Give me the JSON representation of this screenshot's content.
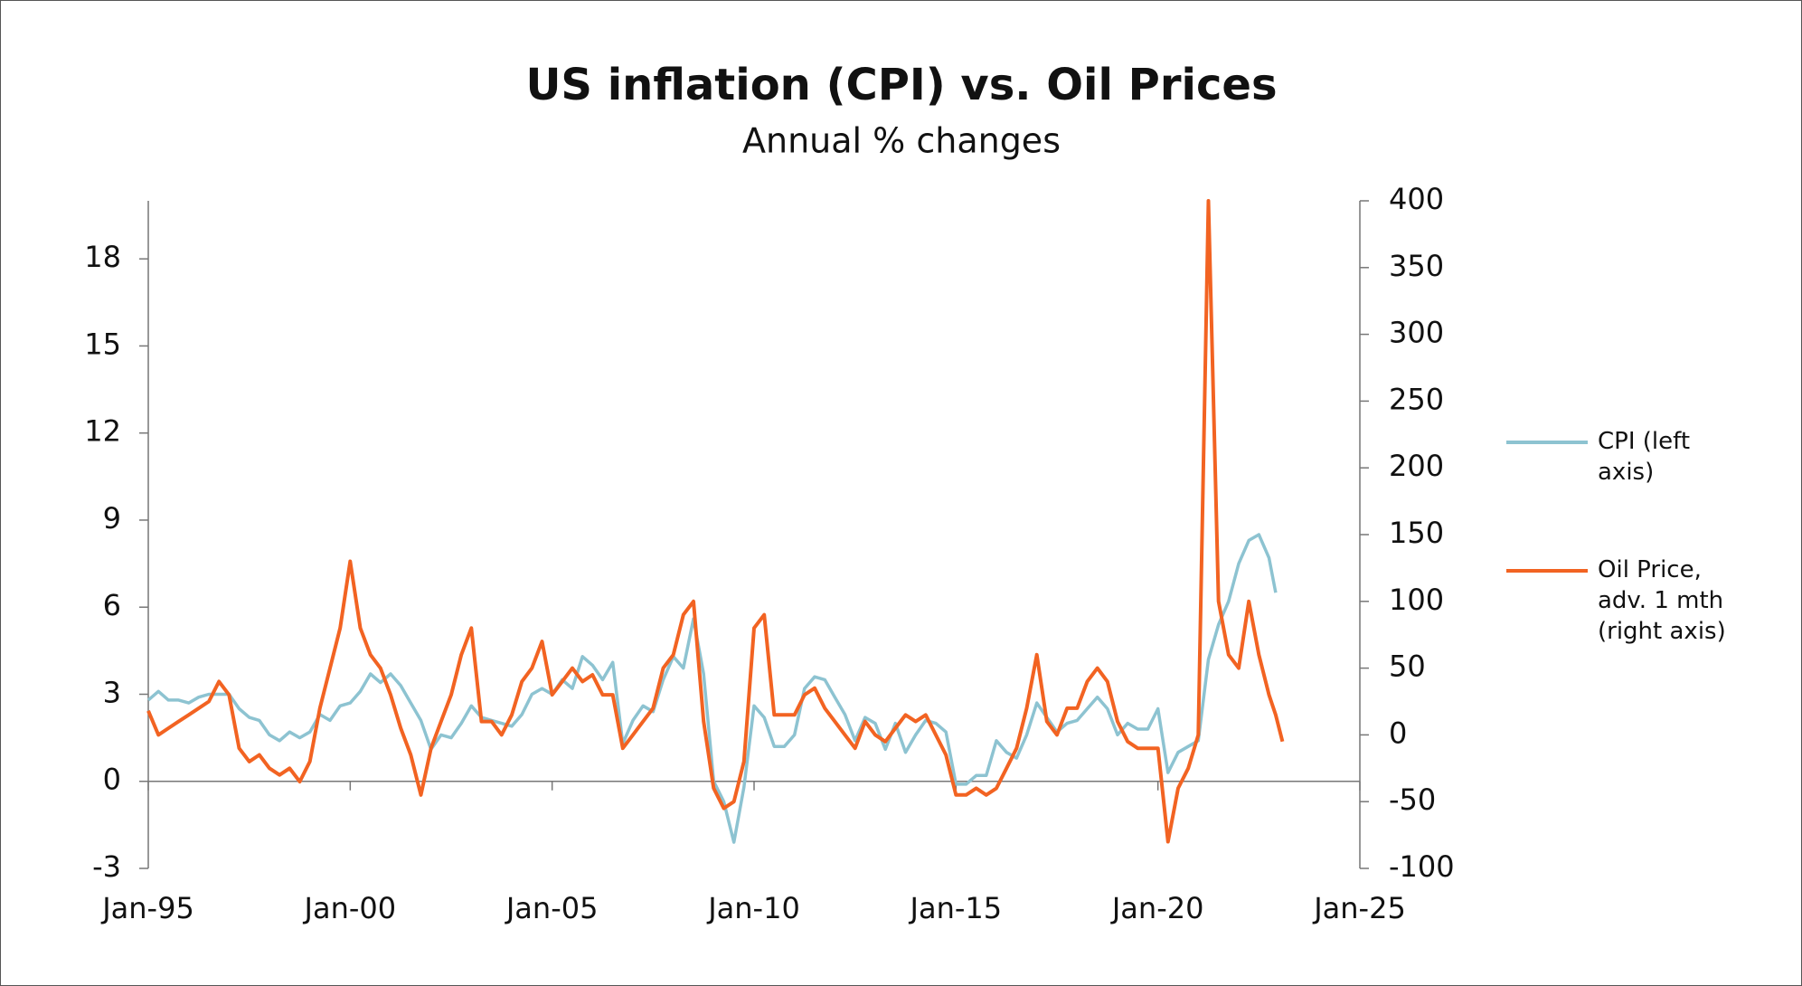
{
  "chart_data": {
    "type": "line",
    "title": "US inflation (CPI) vs. Oil Prices",
    "subtitle": "Annual % changes",
    "x": [
      "Jan-95",
      "Apr-95",
      "Jul-95",
      "Oct-95",
      "Jan-96",
      "Apr-96",
      "Jul-96",
      "Oct-96",
      "Jan-97",
      "Apr-97",
      "Jul-97",
      "Oct-97",
      "Jan-98",
      "Apr-98",
      "Jul-98",
      "Oct-98",
      "Jan-99",
      "Apr-99",
      "Jul-99",
      "Oct-99",
      "Jan-00",
      "Apr-00",
      "Jul-00",
      "Oct-00",
      "Jan-01",
      "Apr-01",
      "Jul-01",
      "Oct-01",
      "Jan-02",
      "Apr-02",
      "Jul-02",
      "Oct-02",
      "Jan-03",
      "Apr-03",
      "Jul-03",
      "Oct-03",
      "Jan-04",
      "Apr-04",
      "Jul-04",
      "Oct-04",
      "Jan-05",
      "Apr-05",
      "Jul-05",
      "Oct-05",
      "Jan-06",
      "Apr-06",
      "Jul-06",
      "Oct-06",
      "Jan-07",
      "Apr-07",
      "Jul-07",
      "Oct-07",
      "Jan-08",
      "Apr-08",
      "Jul-08",
      "Oct-08",
      "Jan-09",
      "Apr-09",
      "Jul-09",
      "Oct-09",
      "Jan-10",
      "Apr-10",
      "Jul-10",
      "Oct-10",
      "Jan-11",
      "Apr-11",
      "Jul-11",
      "Oct-11",
      "Jan-12",
      "Apr-12",
      "Jul-12",
      "Oct-12",
      "Jan-13",
      "Apr-13",
      "Jul-13",
      "Oct-13",
      "Jan-14",
      "Apr-14",
      "Jul-14",
      "Oct-14",
      "Jan-15",
      "Apr-15",
      "Jul-15",
      "Oct-15",
      "Jan-16",
      "Apr-16",
      "Jul-16",
      "Oct-16",
      "Jan-17",
      "Apr-17",
      "Jul-17",
      "Oct-17",
      "Jan-18",
      "Apr-18",
      "Jul-18",
      "Oct-18",
      "Jan-19",
      "Apr-19",
      "Jul-19",
      "Oct-19",
      "Jan-20",
      "Apr-20",
      "Jul-20",
      "Oct-20",
      "Jan-21",
      "Apr-21",
      "Jul-21",
      "Oct-21",
      "Jan-22",
      "Apr-22",
      "Jul-22",
      "Oct-22",
      "Dec-22",
      "Feb-23"
    ],
    "series": [
      {
        "name": "CPI (left axis)",
        "color": "#8dc3d1",
        "axis": "y",
        "values": [
          2.8,
          3.1,
          2.8,
          2.8,
          2.7,
          2.9,
          3.0,
          3.0,
          3.0,
          2.5,
          2.2,
          2.1,
          1.6,
          1.4,
          1.7,
          1.5,
          1.7,
          2.3,
          2.1,
          2.6,
          2.7,
          3.1,
          3.7,
          3.4,
          3.7,
          3.3,
          2.7,
          2.1,
          1.1,
          1.6,
          1.5,
          2.0,
          2.6,
          2.2,
          2.1,
          2.0,
          1.9,
          2.3,
          3.0,
          3.2,
          3.0,
          3.5,
          3.2,
          4.3,
          4.0,
          3.5,
          4.1,
          1.3,
          2.1,
          2.6,
          2.4,
          3.5,
          4.3,
          3.9,
          5.6,
          3.7,
          0.0,
          -0.7,
          -2.1,
          -0.2,
          2.6,
          2.2,
          1.2,
          1.2,
          1.6,
          3.2,
          3.6,
          3.5,
          2.9,
          2.3,
          1.4,
          2.2,
          2.0,
          1.1,
          2.0,
          1.0,
          1.6,
          2.1,
          2.0,
          1.7,
          -0.1,
          -0.1,
          0.2,
          0.2,
          1.4,
          1.0,
          0.8,
          1.6,
          2.7,
          2.2,
          1.7,
          2.0,
          2.1,
          2.5,
          2.9,
          2.5,
          1.6,
          2.0,
          1.8,
          1.8,
          2.5,
          0.3,
          1.0,
          1.2,
          1.4,
          4.2,
          5.4,
          6.2,
          7.5,
          8.3,
          8.5,
          7.7,
          6.5,
          null
        ]
      },
      {
        "name": "Oil Price, adv. 1 mth (right axis)",
        "color": "#f26322",
        "axis": "y2",
        "values": [
          18,
          0,
          5,
          10,
          15,
          20,
          25,
          40,
          30,
          -10,
          -20,
          -15,
          -25,
          -30,
          -25,
          -35,
          -20,
          20,
          50,
          80,
          130,
          80,
          60,
          50,
          30,
          5,
          -15,
          -45,
          -10,
          10,
          30,
          60,
          80,
          10,
          10,
          0,
          15,
          40,
          50,
          70,
          30,
          40,
          50,
          40,
          45,
          30,
          30,
          -10,
          0,
          10,
          20,
          50,
          60,
          90,
          100,
          10,
          -40,
          -55,
          -50,
          -20,
          80,
          90,
          15,
          15,
          15,
          30,
          35,
          20,
          10,
          0,
          -10,
          10,
          0,
          -5,
          5,
          15,
          10,
          15,
          0,
          -15,
          -45,
          -45,
          -40,
          -45,
          -40,
          -25,
          -10,
          20,
          60,
          10,
          0,
          20,
          20,
          40,
          50,
          40,
          10,
          -5,
          -10,
          -10,
          -10,
          -80,
          -40,
          -25,
          0,
          400,
          100,
          60,
          50,
          100,
          60,
          30,
          15,
          -5
        ]
      }
    ],
    "xlim": [
      "Jan-95",
      "Jan-25"
    ],
    "xticks": [
      "Jan-95",
      "Jan-00",
      "Jan-05",
      "Jan-10",
      "Jan-15",
      "Jan-20",
      "Jan-25"
    ],
    "ylim": [
      -3,
      20
    ],
    "yticks": [
      -3,
      0,
      3,
      6,
      9,
      12,
      15,
      18
    ],
    "y2lim": [
      -100,
      400
    ],
    "y2ticks": [
      -100,
      -50,
      0,
      50,
      100,
      150,
      200,
      250,
      300,
      350,
      400
    ],
    "legend": "right"
  }
}
